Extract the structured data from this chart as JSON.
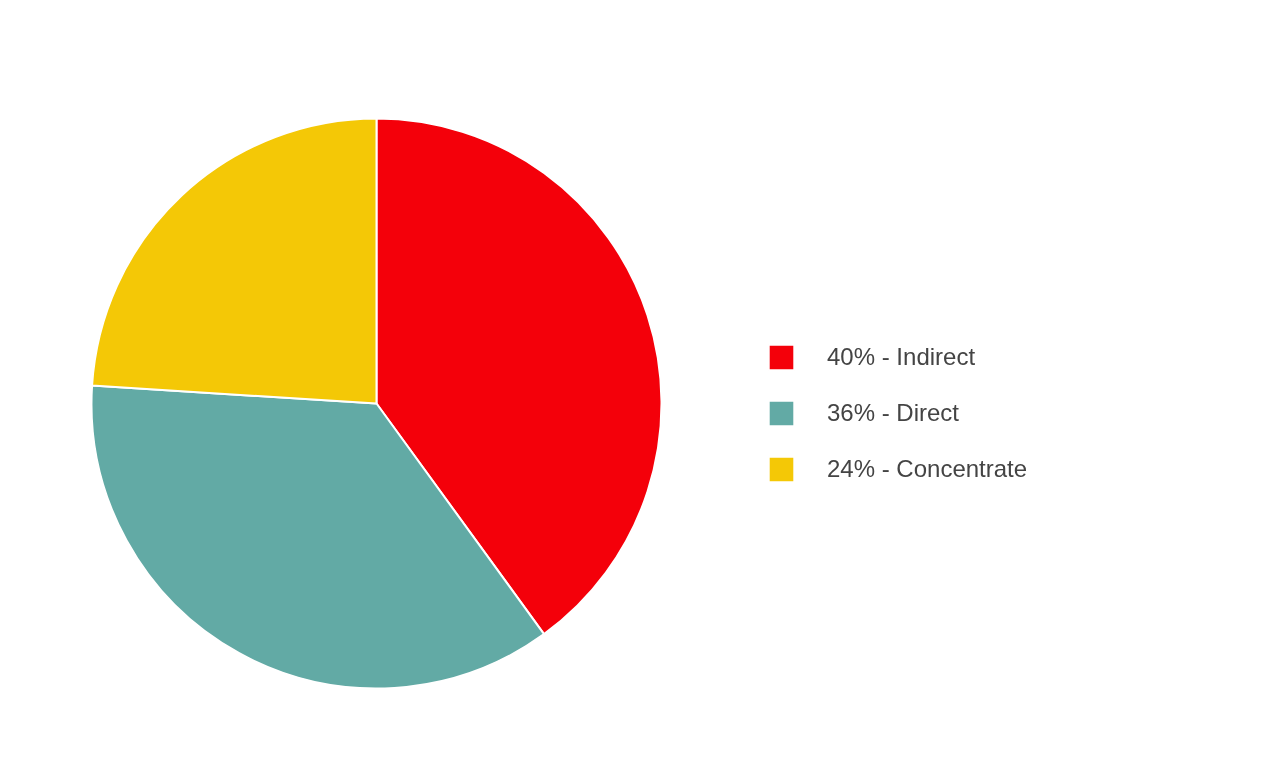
{
  "chart_data": {
    "type": "pie",
    "categories": [
      "40% - Indirect",
      "36% - Direct",
      "24% - Concentrate"
    ],
    "values": [
      40,
      36,
      24
    ],
    "colors": [
      "#f4000a",
      "#62aaa5",
      "#f4c806"
    ],
    "legend": "right"
  }
}
